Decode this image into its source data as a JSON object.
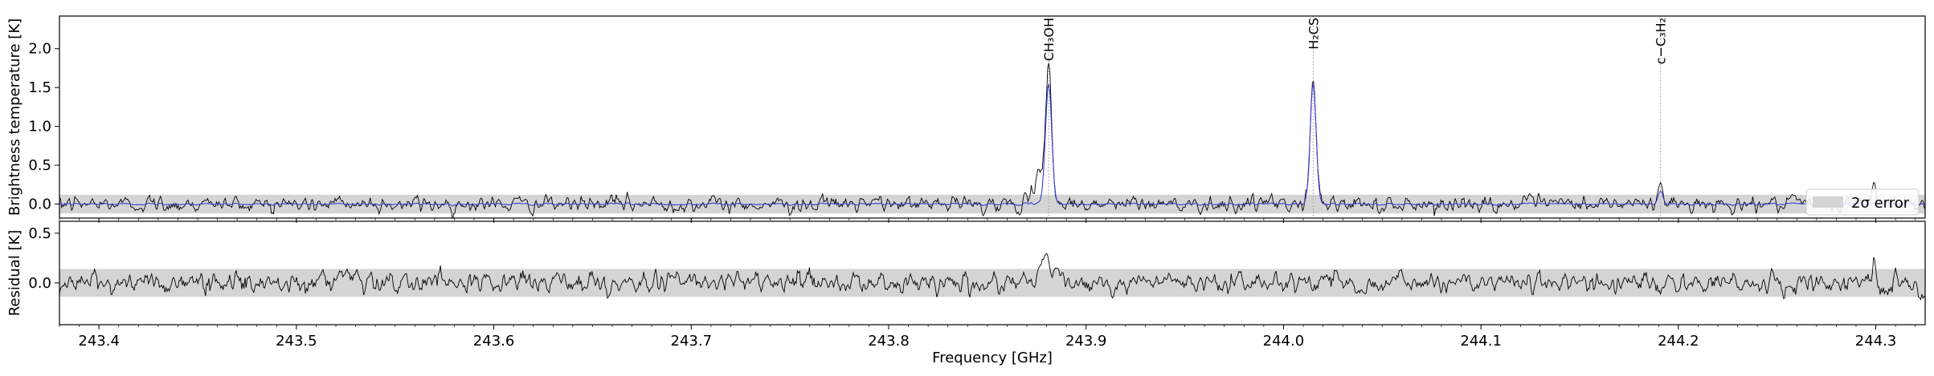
{
  "chart_data": {
    "type": "line",
    "xlabel": "Frequency [GHz]",
    "xlim": [
      243.38,
      244.325
    ],
    "x_ticks": [
      "243.4",
      "243.5",
      "243.6",
      "243.7",
      "243.8",
      "243.9",
      "244.0",
      "244.1",
      "244.2",
      "244.3"
    ],
    "x_tick_values": [
      243.4,
      243.5,
      243.6,
      243.7,
      243.8,
      243.9,
      244.0,
      244.1,
      244.2,
      244.3
    ],
    "panels": [
      {
        "name": "spectrum",
        "ylabel": "Brightness temperature [K]",
        "ylim": [
          -0.18,
          2.42
        ],
        "y_ticks": [
          "0.0",
          "0.5",
          "1.0",
          "1.5",
          "2.0"
        ],
        "y_tick_values": [
          0.0,
          0.5,
          1.0,
          1.5,
          2.0
        ],
        "error_band": [
          -0.12,
          0.12
        ],
        "noise_rms": 0.05,
        "series": [
          {
            "role": "observed",
            "color": "#000000",
            "peaks": [
              {
                "center": 243.881,
                "height": 1.78,
                "width": 0.0016
              },
              {
                "center": 243.876,
                "height": 0.32,
                "width": 0.0022
              },
              {
                "center": 244.015,
                "height": 1.58,
                "width": 0.0015
              },
              {
                "center": 244.191,
                "height": 0.28,
                "width": 0.0012
              },
              {
                "center": 244.299,
                "height": 0.25,
                "width": 0.0008
              }
            ]
          },
          {
            "role": "model",
            "color": "#3b3bd6",
            "peaks": [
              {
                "center": 243.881,
                "height": 1.55,
                "width": 0.0016
              },
              {
                "center": 244.015,
                "height": 1.55,
                "width": 0.0015
              },
              {
                "center": 244.191,
                "height": 0.17,
                "width": 0.0012
              }
            ]
          }
        ],
        "line_markers": [
          {
            "x": 243.881,
            "label": "CH₃OH"
          },
          {
            "x": 244.015,
            "label": "H₂CS"
          },
          {
            "x": 244.191,
            "label": "c−C₃H₂"
          }
        ],
        "legend": {
          "label": "2σ error",
          "position": "lower right"
        }
      },
      {
        "name": "residual",
        "ylabel": "Residual [K]",
        "ylim": [
          -0.42,
          0.62
        ],
        "y_ticks": [
          "0.0",
          "0.5"
        ],
        "y_tick_values": [
          0.0,
          0.5
        ],
        "error_band": [
          -0.14,
          0.14
        ],
        "noise_rms": 0.055,
        "features": [
          {
            "center": 243.881,
            "height": 0.32,
            "width": 0.0035
          },
          {
            "center": 243.883,
            "height": -0.18,
            "width": 0.0012
          },
          {
            "center": 244.015,
            "height": -0.08,
            "width": 0.0012
          },
          {
            "center": 244.191,
            "height": -0.18,
            "width": 0.0015
          },
          {
            "center": 244.299,
            "height": 0.22,
            "width": 0.0008
          }
        ]
      }
    ]
  }
}
